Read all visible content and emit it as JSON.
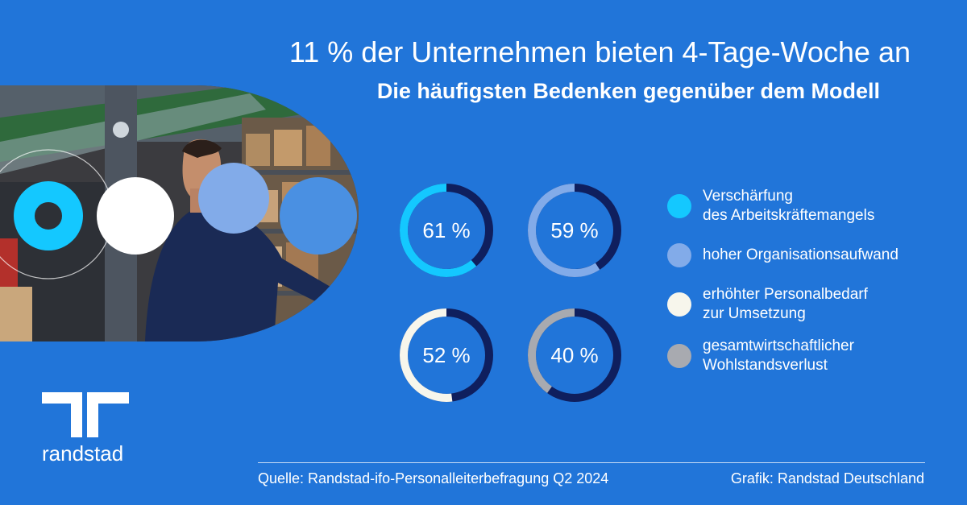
{
  "header": {
    "title": "11 % der Unternehmen bieten 4-Tage-Woche an",
    "subtitle": "Die häufigsten Bedenken gegenüber dem Modell"
  },
  "chart_data": {
    "type": "donut",
    "title": "11 % der Unternehmen bieten 4-Tage-Woche an",
    "subtitle": "Die häufigsten Bedenken gegenüber dem Modell",
    "unit": "%",
    "series": [
      {
        "name": "Verschärfung des Arbeitskräftemangels",
        "value": 61,
        "label": "61 %",
        "color": "#14c8ff"
      },
      {
        "name": "hoher Organisationsaufwand",
        "value": 59,
        "label": "59 %",
        "color": "#82abe9"
      },
      {
        "name": "erhöhter Personalbedarf zur Umsetzung",
        "value": 52,
        "label": "52 %",
        "color": "#f7f6ec"
      },
      {
        "name": "gesamtwirtschaftlicher Wohlstandsverlust",
        "value": 40,
        "label": "40 %",
        "color": "#a8aab0"
      }
    ],
    "ring_track_color": "#0f1f5e",
    "legend_position": "right"
  },
  "legend": {
    "items": [
      {
        "label": "Verschärfung\ndes Arbeitskräftemangels",
        "color": "#14c8ff"
      },
      {
        "label": "hoher Organisationsaufwand",
        "color": "#82abe9"
      },
      {
        "label": "erhöhter Personalbedarf\nzur Umsetzung",
        "color": "#f7f6ec"
      },
      {
        "label": "gesamtwirtschaftlicher\nWohlstandsverlust",
        "color": "#a8aab0"
      }
    ]
  },
  "brand": {
    "logo_icon": "randstad-logo-icon",
    "name": "randstad"
  },
  "footer": {
    "source": "Quelle: Randstad-ifo-Personalleiterbefragung Q2 2024",
    "credit": "Grafik: Randstad Deutschland"
  },
  "colors": {
    "background": "#2175d9",
    "text": "#ffffff"
  }
}
